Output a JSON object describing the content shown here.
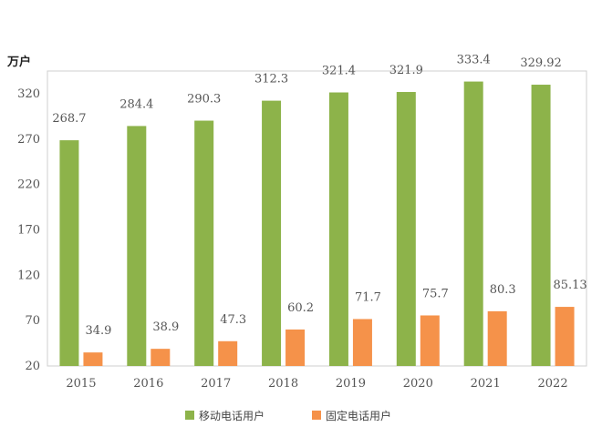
{
  "chart_data": {
    "type": "bar",
    "unit_label": "万户",
    "categories": [
      "2015",
      "2016",
      "2017",
      "2018",
      "2019",
      "2020",
      "2021",
      "2022"
    ],
    "series": [
      {
        "name": "移动电话用户",
        "color": "#8db34a",
        "values": [
          268.7,
          284.4,
          290.3,
          312.3,
          321.4,
          321.9,
          333.4,
          329.92
        ],
        "labels": [
          "268.7",
          "284.4",
          "290.3",
          "312.3",
          "321.4",
          "321.9",
          "333.4",
          "329.92"
        ]
      },
      {
        "name": "固定电话用户",
        "color": "#f5924a",
        "values": [
          34.9,
          38.9,
          47.3,
          60.2,
          71.7,
          75.7,
          80.3,
          85.13
        ],
        "labels": [
          "34.9",
          "38.9",
          "47.3",
          "60.2",
          "71.7",
          "75.7",
          "80.3",
          "85.13"
        ]
      }
    ],
    "yticks": [
      "20",
      "70",
      "120",
      "170",
      "220",
      "270",
      "320"
    ],
    "ylim": [
      20,
      345
    ],
    "grid": false,
    "legend_position": "bottom-center"
  }
}
